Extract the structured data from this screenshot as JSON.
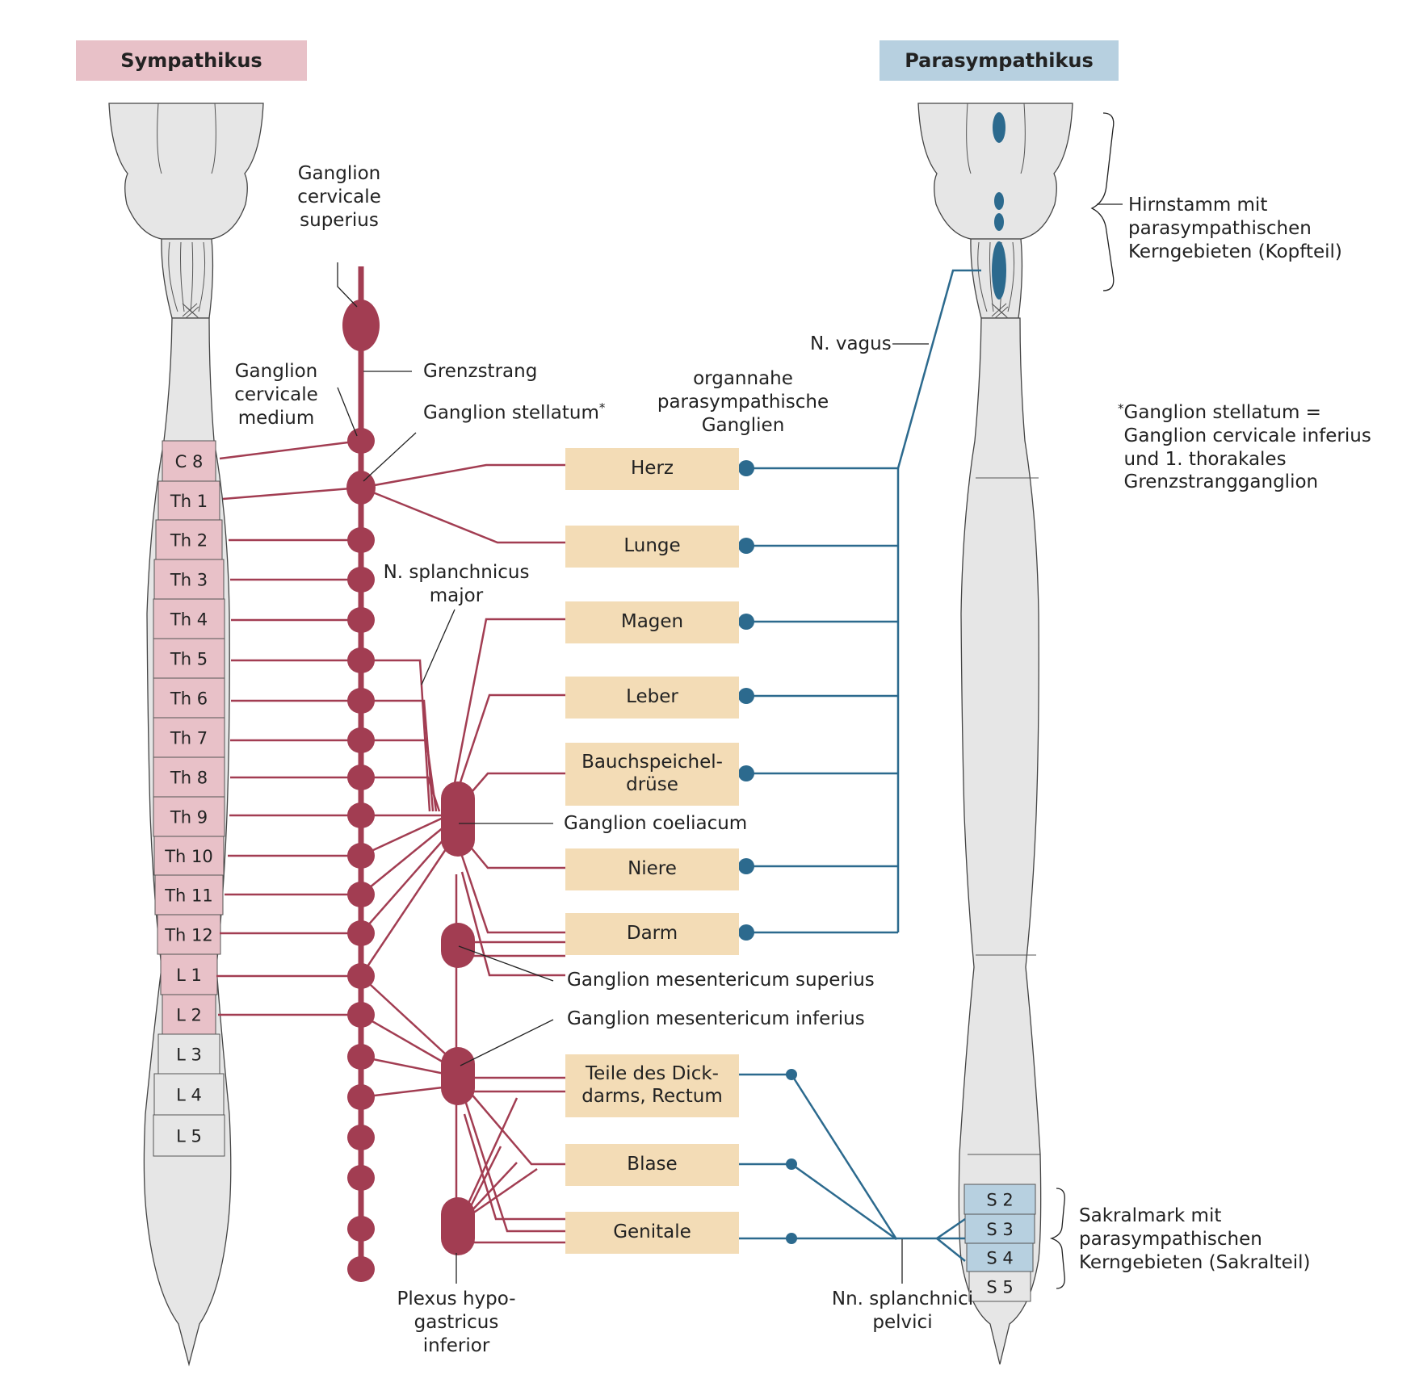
{
  "headers": {
    "sympathikus": "Sympathikus",
    "parasympathikus": "Parasympathikus"
  },
  "colors": {
    "sympathetic": "#a23d52",
    "parasympathetic": "#2c6a8e",
    "sympathetic_segment_fill": "#e8c1c8",
    "sacral_segment_fill": "#b7d0e0",
    "organ_fill": "#f3dcb6",
    "cord_fill": "#e6e6e6"
  },
  "sympathetic_segments": [
    "C 8",
    "Th 1",
    "Th 2",
    "Th 3",
    "Th 4",
    "Th 5",
    "Th 6",
    "Th 7",
    "Th 8",
    "Th 9",
    "Th 10",
    "Th 11",
    "Th 12",
    "L 1",
    "L 2"
  ],
  "lower_segments": [
    "L 3",
    "L 4",
    "L 5"
  ],
  "sacral_segments": {
    "parasympathetic": [
      "S 2",
      "S 3",
      "S 4"
    ],
    "other": "S 5"
  },
  "organs": [
    "Herz",
    "Lunge",
    "Magen",
    "Leber",
    "Bauchspeichel-\ndrüse",
    "Niere",
    "Darm",
    "Teile des Dick-\ndarms, Rectum",
    "Blase",
    "Genitale"
  ],
  "labels": {
    "ganglion_cervicale_superius": "Ganglion\ncervicale\nsuperius",
    "grenzstrang": "Grenzstrang",
    "ganglion_cervicale_medium": "Ganglion\ncervicale\nmedium",
    "ganglion_stellatum": "Ganglion stellatum",
    "asterisk": "*",
    "organnahe": "organnahe\nparasympathische\nGanglien",
    "n_vagus": "N. vagus",
    "n_splanchnicus_major": "N. splanchnicus\nmajor",
    "ganglion_coeliacum": "Ganglion coeliacum",
    "ganglion_mesentericum_superius": "Ganglion mesentericum superius",
    "ganglion_mesentericum_inferius": "Ganglion mesentericum inferius",
    "plexus": "Plexus hypo-\ngastricus inferior",
    "nn_splanchnici": "Nn. splanchnici\npelvici",
    "hirnstamm": "Hirnstamm mit\nparasympathischen\nKerngebieten (Kopfteil)",
    "sakralmark": "Sakralmark mit\nparasympathischen\nKerngebieten (Sakralteil)",
    "footnote": "Ganglion stellatum =\nGanglion cervicale inferius\nund 1. thorakales\nGrenzstrangganglion"
  }
}
